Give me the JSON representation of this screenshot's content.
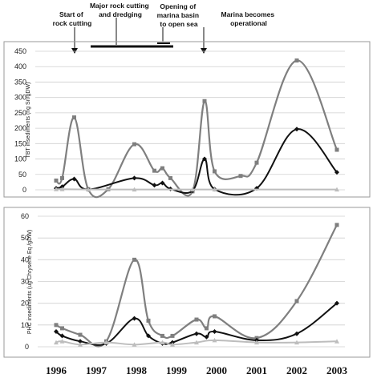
{
  "colors": {
    "dark": "#111111",
    "medium": "#7f7f7f",
    "light": "#bdbdbd",
    "grid": "#cfcfcf",
    "frame": "#9a9a9a"
  },
  "annotations": [
    {
      "text": [
        "Start of",
        "rock cutting"
      ]
    },
    {
      "text": [
        "Major rock cutting",
        "and dredging"
      ]
    },
    {
      "text": [
        "Opening of",
        "marina basin",
        "to open sea"
      ]
    },
    {
      "text": [
        "Marina becomes",
        "operational"
      ]
    }
  ],
  "chart_data": [
    {
      "type": "line",
      "title": "",
      "xlabel": "",
      "ylabel": "TBT insediments (ng Sn/gDW)",
      "ylim": [
        0,
        450
      ],
      "yticks": [
        0,
        50,
        100,
        150,
        200,
        250,
        300,
        350,
        400,
        450
      ],
      "grid": true,
      "x_axis": "years 1996–2003",
      "series": [
        {
          "style": "medium-square",
          "points": [
            [
              1996.0,
              30
            ],
            [
              1996.15,
              38
            ],
            [
              1996.45,
              235
            ],
            [
              1996.8,
              2
            ],
            [
              1997.3,
              2
            ],
            [
              1997.95,
              148
            ],
            [
              1998.45,
              62
            ],
            [
              1998.65,
              70
            ],
            [
              1998.85,
              38
            ],
            [
              1999.4,
              -5
            ],
            [
              1999.7,
              288
            ],
            [
              1999.95,
              60
            ],
            [
              2000.6,
              45
            ],
            [
              2001.0,
              88
            ],
            [
              2002.0,
              420
            ],
            [
              2003.0,
              130
            ]
          ]
        },
        {
          "style": "dark-diamond",
          "points": [
            [
              1996.0,
              5
            ],
            [
              1996.15,
              10
            ],
            [
              1996.45,
              35
            ],
            [
              1996.8,
              1
            ],
            [
              1997.95,
              38
            ],
            [
              1998.45,
              15
            ],
            [
              1998.65,
              22
            ],
            [
              1998.85,
              3
            ],
            [
              1999.4,
              -3
            ],
            [
              1999.7,
              100
            ],
            [
              1999.95,
              2
            ],
            [
              2001.0,
              5
            ],
            [
              2002.0,
              197
            ],
            [
              2003.0,
              57
            ]
          ]
        },
        {
          "style": "light-triangle",
          "points": [
            [
              1996.0,
              2
            ],
            [
              1996.15,
              2
            ],
            [
              1996.8,
              1
            ],
            [
              1997.95,
              1
            ],
            [
              1999.4,
              1
            ],
            [
              1999.95,
              1
            ],
            [
              2003.0,
              1
            ]
          ]
        }
      ]
    },
    {
      "type": "line",
      "title": "",
      "xlabel": "",
      "ylabel": "PHC insediments (ug Chrysene Eq /gDW)",
      "ylim": [
        0,
        60
      ],
      "yticks": [
        0,
        10,
        20,
        30,
        40,
        50,
        60
      ],
      "grid": true,
      "x_axis": "years 1996–2003",
      "xticks": [
        "1996",
        "1997",
        "1998",
        "1999",
        "2000",
        "2001",
        "2002",
        "2003"
      ],
      "series": [
        {
          "style": "medium-square",
          "points": [
            [
              1996.0,
              10
            ],
            [
              1996.15,
              8.5
            ],
            [
              1996.6,
              5.5
            ],
            [
              1997.25,
              2.5
            ],
            [
              1997.95,
              40
            ],
            [
              1998.3,
              12
            ],
            [
              1998.65,
              5
            ],
            [
              1998.9,
              5
            ],
            [
              1999.5,
              12.5
            ],
            [
              1999.75,
              8.5
            ],
            [
              1999.95,
              14
            ],
            [
              2001.0,
              4
            ],
            [
              2002.0,
              21
            ],
            [
              2003.0,
              56
            ]
          ]
        },
        {
          "style": "dark-diamond",
          "points": [
            [
              1996.0,
              7
            ],
            [
              1996.15,
              5
            ],
            [
              1996.6,
              2.5
            ],
            [
              1997.25,
              1.5
            ],
            [
              1997.95,
              13
            ],
            [
              1998.3,
              5
            ],
            [
              1998.65,
              1.5
            ],
            [
              1998.9,
              2
            ],
            [
              1999.5,
              6
            ],
            [
              1999.75,
              4.5
            ],
            [
              1999.95,
              7
            ],
            [
              2001.0,
              3
            ],
            [
              2002.0,
              6
            ],
            [
              2003.0,
              20
            ]
          ]
        },
        {
          "style": "light-triangle",
          "points": [
            [
              1996.0,
              2
            ],
            [
              1996.15,
              2.5
            ],
            [
              1996.6,
              1
            ],
            [
              1997.25,
              2
            ],
            [
              1997.95,
              1
            ],
            [
              1998.65,
              2
            ],
            [
              1998.9,
              1
            ],
            [
              1999.5,
              2
            ],
            [
              1999.95,
              3
            ],
            [
              2001.0,
              2
            ],
            [
              2002.0,
              2
            ],
            [
              2003.0,
              2.5
            ]
          ]
        }
      ]
    }
  ]
}
